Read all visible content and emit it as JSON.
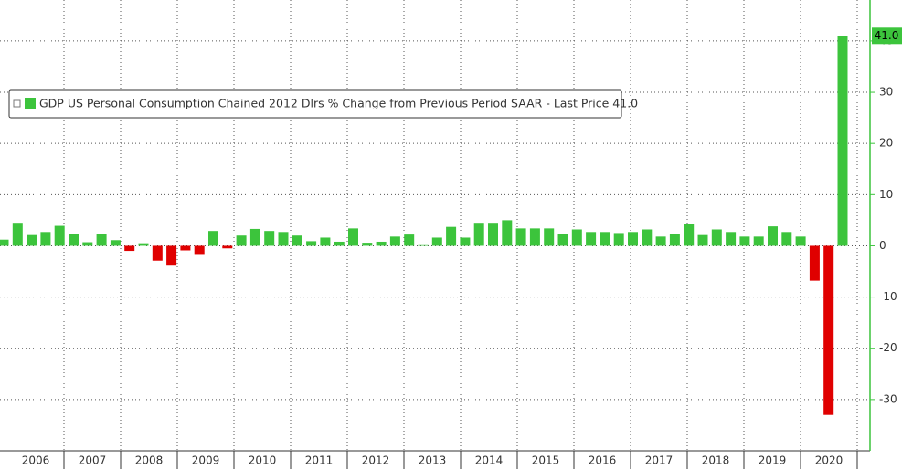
{
  "chart_data": {
    "type": "bar",
    "legend_label": "GDP US Personal Consumption Chained 2012 Dlrs % Change from Previous Period SAAR - Last Price 41.0",
    "last_price_label": "41.0",
    "values": [
      1.2,
      4.5,
      2.1,
      2.7,
      3.9,
      2.3,
      0.7,
      2.3,
      1.1,
      -1.0,
      0.5,
      -2.9,
      -3.7,
      -0.9,
      -1.6,
      2.9,
      -0.5,
      2.0,
      3.3,
      2.9,
      2.7,
      2.0,
      0.9,
      1.6,
      0.8,
      3.4,
      0.6,
      0.8,
      1.8,
      2.2,
      0.3,
      1.6,
      3.7,
      1.6,
      4.5,
      4.5,
      5.0,
      3.4,
      3.4,
      3.4,
      2.3,
      3.2,
      2.7,
      2.7,
      2.5,
      2.7,
      3.2,
      1.8,
      2.3,
      4.3,
      2.1,
      3.2,
      2.7,
      1.8,
      1.8,
      3.8,
      2.7,
      1.8,
      -6.8,
      -33.0,
      41.0
    ],
    "year_labels": [
      "2006",
      "2007",
      "2008",
      "2009",
      "2010",
      "2011",
      "2012",
      "2013",
      "2014",
      "2015",
      "2016",
      "2017",
      "2018",
      "2019",
      "2020"
    ],
    "positive_color": "#3cc43c",
    "negative_color": "#e00000",
    "ylim": [
      -40,
      48
    ],
    "yticks": [
      -30,
      -20,
      -10,
      0,
      10,
      20,
      30,
      40
    ],
    "grid": true
  }
}
